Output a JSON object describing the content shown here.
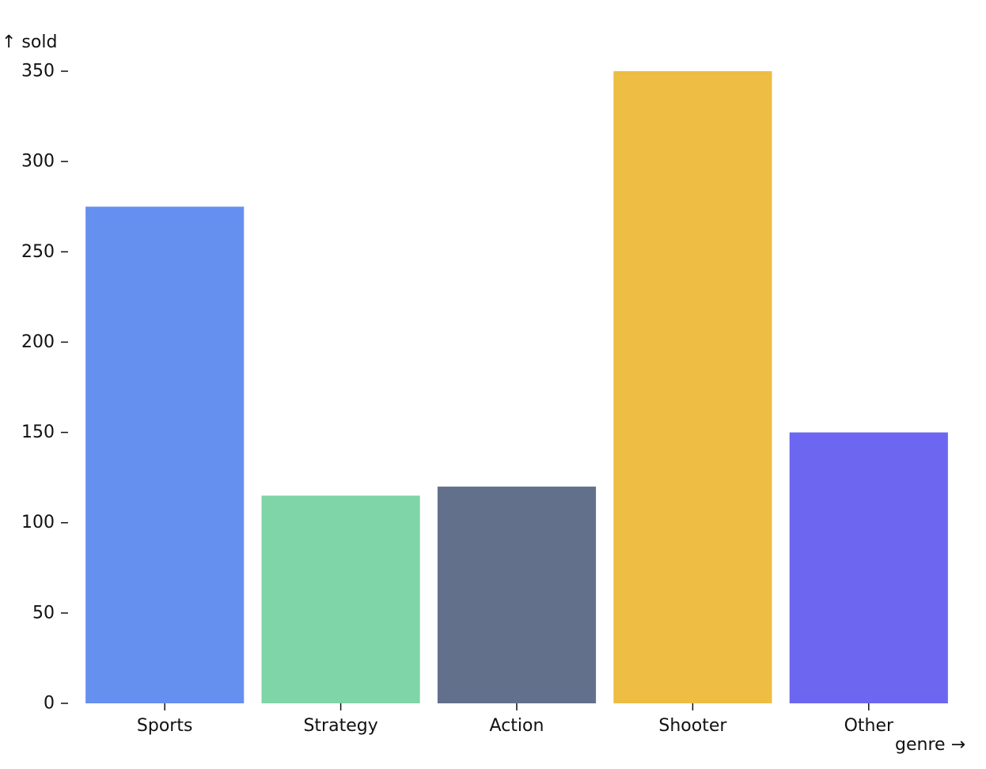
{
  "chart_data": {
    "type": "bar",
    "categories": [
      "Sports",
      "Strategy",
      "Action",
      "Shooter",
      "Other"
    ],
    "values": [
      275,
      115,
      120,
      350,
      150
    ],
    "colors": [
      "#6690f0",
      "#7fd4a8",
      "#62708c",
      "#edbd44",
      "#6c66f0"
    ],
    "xlabel": "genre →",
    "ylabel": "↑ sold",
    "ylim": [
      0,
      350
    ],
    "yticks": [
      0,
      50,
      100,
      150,
      200,
      250,
      300,
      350
    ],
    "grid": false,
    "legend": "none"
  }
}
